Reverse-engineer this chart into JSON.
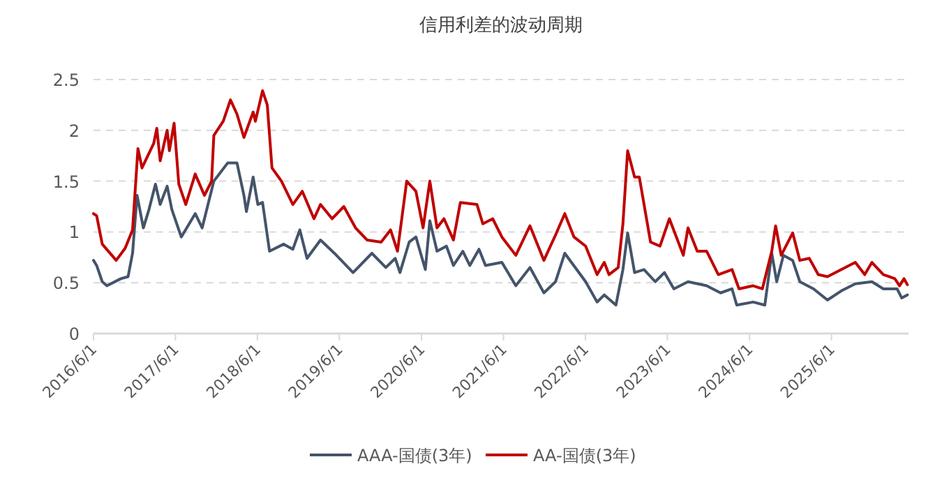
{
  "chart_data": {
    "type": "line",
    "title": "信用利差的波动周期",
    "xlim": [
      "2016-06-01",
      "2026-05-10"
    ],
    "xticks": [
      {
        "value": "2016-06-01",
        "label": "2016/6/1"
      },
      {
        "value": "2017-06-01",
        "label": "2017/6/1"
      },
      {
        "value": "2018-06-01",
        "label": "2018/6/1"
      },
      {
        "value": "2019-06-01",
        "label": "2019/6/1"
      },
      {
        "value": "2020-06-01",
        "label": "2020/6/1"
      },
      {
        "value": "2021-06-01",
        "label": "2021/6/1"
      },
      {
        "value": "2022-06-01",
        "label": "2022/6/1"
      },
      {
        "value": "2023-06-01",
        "label": "2023/6/1"
      },
      {
        "value": "2024-06-01",
        "label": "2024/6/1"
      },
      {
        "value": "2025-06-01",
        "label": "2025/6/1"
      }
    ],
    "ylim": [
      0,
      2.5
    ],
    "yticks": [
      0,
      0.5,
      1,
      1.5,
      2,
      2.5
    ],
    "grid": "y",
    "legend": "bottom",
    "marker": "none",
    "line_style": "solid",
    "series": [
      {
        "name": "AAA-国债(3年)",
        "color": "#44546a",
        "x": [
          "2016-06-01",
          "2016-06-15",
          "2016-07-10",
          "2016-07-31",
          "2016-10-01",
          "2016-11-02",
          "2016-11-22",
          "2016-12-12",
          "2017-01-09",
          "2017-02-03",
          "2017-03-04",
          "2017-03-25",
          "2017-04-25",
          "2017-05-16",
          "2017-06-27",
          "2017-08-28",
          "2017-09-28",
          "2017-11-19",
          "2018-01-20",
          "2018-03-02",
          "2018-04-02",
          "2018-04-13",
          "2018-05-13",
          "2018-06-03",
          "2018-06-24",
          "2018-07-25",
          "2018-09-26",
          "2018-11-06",
          "2018-12-07",
          "2019-01-08",
          "2019-03-09",
          "2019-05-10",
          "2019-08-01",
          "2019-10-24",
          "2019-12-25",
          "2020-02-05",
          "2020-02-26",
          "2020-04-07",
          "2020-05-07",
          "2020-06-18",
          "2020-07-08",
          "2020-08-09",
          "2020-09-20",
          "2020-10-21",
          "2020-12-02",
          "2021-01-02",
          "2021-02-12",
          "2021-03-13",
          "2021-05-25",
          "2021-07-26",
          "2021-09-27",
          "2021-11-28",
          "2022-01-19",
          "2022-03-01",
          "2022-06-02",
          "2022-07-23",
          "2022-08-24",
          "2022-10-15",
          "2022-11-15",
          "2022-12-06",
          "2023-01-06",
          "2023-02-17",
          "2023-04-08",
          "2023-05-19",
          "2023-06-30",
          "2023-09-01",
          "2023-11-23",
          "2024-01-24",
          "2024-03-15",
          "2024-04-05",
          "2024-06-17",
          "2024-08-08",
          "2024-09-08",
          "2024-09-30",
          "2024-10-30",
          "2024-12-10",
          "2025-01-11",
          "2025-03-13",
          "2025-05-14",
          "2025-07-15",
          "2025-09-15",
          "2025-11-28",
          "2026-01-18",
          "2026-03-20",
          "2026-04-10",
          "2026-05-05"
        ],
        "values": [
          0.72,
          0.67,
          0.51,
          0.47,
          0.54,
          0.56,
          0.79,
          1.36,
          1.04,
          1.22,
          1.47,
          1.27,
          1.45,
          1.22,
          0.95,
          1.18,
          1.04,
          1.5,
          1.68,
          1.68,
          1.36,
          1.2,
          1.54,
          1.27,
          1.29,
          0.81,
          0.88,
          0.83,
          1.02,
          0.74,
          0.92,
          0.79,
          0.6,
          0.79,
          0.65,
          0.74,
          0.6,
          0.9,
          0.95,
          0.63,
          1.11,
          0.81,
          0.86,
          0.67,
          0.81,
          0.67,
          0.83,
          0.67,
          0.7,
          0.47,
          0.65,
          0.4,
          0.51,
          0.79,
          0.51,
          0.31,
          0.38,
          0.28,
          0.63,
          0.99,
          0.6,
          0.63,
          0.51,
          0.6,
          0.44,
          0.51,
          0.47,
          0.4,
          0.44,
          0.28,
          0.31,
          0.28,
          0.79,
          0.51,
          0.77,
          0.72,
          0.51,
          0.44,
          0.33,
          0.42,
          0.49,
          0.51,
          0.44,
          0.44,
          0.35,
          0.38
        ]
      },
      {
        "name": "AA-国债(3年)",
        "color": "#c00000",
        "x": [
          "2016-06-01",
          "2016-06-15",
          "2016-07-10",
          "2016-09-10",
          "2016-10-20",
          "2016-11-22",
          "2016-12-16",
          "2017-01-03",
          "2017-02-24",
          "2017-03-10",
          "2017-03-25",
          "2017-04-25",
          "2017-05-05",
          "2017-05-26",
          "2017-06-16",
          "2017-07-17",
          "2017-08-28",
          "2017-10-08",
          "2017-11-09",
          "2017-11-19",
          "2017-12-31",
          "2018-02-01",
          "2018-03-02",
          "2018-04-02",
          "2018-05-13",
          "2018-05-23",
          "2018-06-24",
          "2018-07-15",
          "2018-08-05",
          "2018-09-16",
          "2018-11-06",
          "2018-12-18",
          "2019-02-08",
          "2019-03-09",
          "2019-04-30",
          "2019-06-21",
          "2019-08-12",
          "2019-10-03",
          "2019-12-04",
          "2020-01-15",
          "2020-02-15",
          "2020-03-27",
          "2020-05-07",
          "2020-06-08",
          "2020-07-08",
          "2020-08-09",
          "2020-09-09",
          "2020-10-21",
          "2020-11-21",
          "2021-02-03",
          "2021-03-01",
          "2021-04-14",
          "2021-05-25",
          "2021-07-26",
          "2021-09-27",
          "2021-11-28",
          "2022-01-19",
          "2022-03-01",
          "2022-04-11",
          "2022-06-02",
          "2022-07-23",
          "2022-08-24",
          "2022-09-14",
          "2022-10-25",
          "2022-11-15",
          "2022-12-06",
          "2023-01-06",
          "2023-01-27",
          "2023-03-18",
          "2023-04-29",
          "2023-06-10",
          "2023-08-11",
          "2023-09-01",
          "2023-10-12",
          "2023-11-23",
          "2024-01-14",
          "2024-03-15",
          "2024-04-15",
          "2024-06-17",
          "2024-07-28",
          "2024-09-08",
          "2024-09-25",
          "2024-10-20",
          "2024-12-10",
          "2025-01-11",
          "2025-02-22",
          "2025-04-03",
          "2025-05-14",
          "2025-07-15",
          "2025-09-15",
          "2025-10-27",
          "2025-11-28",
          "2026-01-18",
          "2026-03-10",
          "2026-03-31",
          "2026-04-20",
          "2026-05-05"
        ],
        "values": [
          1.18,
          1.16,
          0.88,
          0.72,
          0.84,
          1.02,
          1.82,
          1.63,
          1.87,
          2.02,
          1.7,
          2.0,
          1.8,
          2.07,
          1.47,
          1.27,
          1.57,
          1.36,
          1.5,
          1.95,
          2.09,
          2.3,
          2.16,
          1.93,
          2.18,
          2.09,
          2.39,
          2.25,
          1.63,
          1.5,
          1.27,
          1.4,
          1.13,
          1.27,
          1.13,
          1.25,
          1.04,
          0.92,
          0.9,
          1.02,
          0.81,
          1.5,
          1.4,
          1.04,
          1.5,
          1.04,
          1.13,
          0.92,
          1.29,
          1.27,
          1.08,
          1.13,
          0.95,
          0.77,
          1.06,
          0.72,
          0.97,
          1.18,
          0.95,
          0.86,
          0.58,
          0.7,
          0.58,
          0.65,
          1.08,
          1.8,
          1.54,
          1.54,
          0.9,
          0.86,
          1.13,
          0.77,
          1.04,
          0.81,
          0.81,
          0.58,
          0.63,
          0.44,
          0.47,
          0.44,
          0.81,
          1.06,
          0.77,
          0.99,
          0.72,
          0.74,
          0.58,
          0.56,
          0.63,
          0.7,
          0.58,
          0.7,
          0.58,
          0.54,
          0.47,
          0.54,
          0.48
        ]
      }
    ]
  }
}
